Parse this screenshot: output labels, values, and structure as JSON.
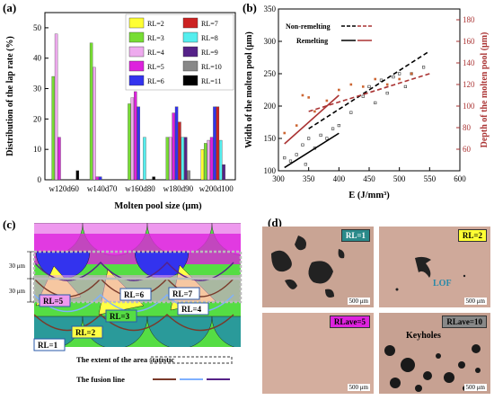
{
  "figure": {
    "panel_a_label": "(a)",
    "panel_b_label": "(b)",
    "panel_c_label": "(c)",
    "panel_d_label": "(d)"
  },
  "chart_data": [
    {
      "type": "bar",
      "ylabel": "Distribution of the lap rate (%)",
      "xlabel": "Molten pool size (μm)",
      "ylim": [
        0,
        55
      ],
      "yticks": [
        0,
        10,
        20,
        30,
        40,
        50
      ],
      "categories": [
        "w120d60",
        "w140d70",
        "w160d80",
        "w180d90",
        "w200d100"
      ],
      "legend_position": "top-right",
      "series": [
        {
          "name": "RL=2",
          "color": "#ffff33",
          "values": [
            0,
            0,
            0,
            0,
            10
          ]
        },
        {
          "name": "RL=3",
          "color": "#77dd33",
          "values": [
            34,
            45,
            25,
            14,
            12
          ]
        },
        {
          "name": "RL=4",
          "color": "#eeaaee",
          "values": [
            48,
            37,
            27,
            14,
            13
          ]
        },
        {
          "name": "RL=5",
          "color": "#dd22dd",
          "values": [
            14,
            1,
            29,
            22,
            14
          ]
        },
        {
          "name": "RL=6",
          "color": "#3333ee",
          "values": [
            0,
            1,
            24,
            24,
            24
          ]
        },
        {
          "name": "RL=7",
          "color": "#cc2222",
          "values": [
            0,
            0,
            0,
            19,
            24
          ]
        },
        {
          "name": "RL=8",
          "color": "#55eeee",
          "values": [
            0,
            0,
            14,
            14,
            13
          ]
        },
        {
          "name": "RL=9",
          "color": "#552288",
          "values": [
            0,
            0,
            0,
            14,
            5
          ]
        },
        {
          "name": "RL=10",
          "color": "#888888",
          "values": [
            0,
            0,
            0,
            3,
            0
          ]
        },
        {
          "name": "RL=11",
          "color": "#000000",
          "values": [
            3,
            0,
            1,
            0,
            0
          ]
        }
      ]
    },
    {
      "type": "scatter",
      "xlabel": "E (J/mm³)",
      "ylabel": "Width of the molten pool (μm)",
      "y2label": "Depth of the molten pool (μm)",
      "xlim": [
        300,
        600
      ],
      "ylim": [
        100,
        350
      ],
      "y2lim": [
        40,
        190
      ],
      "xticks": [
        300,
        350,
        400,
        450,
        500,
        550,
        600
      ],
      "yticks": [
        100,
        150,
        200,
        250,
        300,
        350
      ],
      "y2ticks": [
        60,
        80,
        100,
        120,
        140,
        160,
        180
      ],
      "legend": [
        "Non-remelting",
        "Remelting"
      ],
      "width_points": [
        [
          310,
          120
        ],
        [
          320,
          115
        ],
        [
          330,
          125
        ],
        [
          340,
          140
        ],
        [
          345,
          110
        ],
        [
          350,
          150
        ],
        [
          360,
          135
        ],
        [
          370,
          155
        ],
        [
          380,
          150
        ],
        [
          390,
          165
        ],
        [
          400,
          170
        ],
        [
          420,
          190
        ],
        [
          440,
          215
        ],
        [
          450,
          230
        ],
        [
          460,
          205
        ],
        [
          470,
          240
        ],
        [
          480,
          220
        ],
        [
          490,
          245
        ],
        [
          500,
          250
        ],
        [
          510,
          230
        ],
        [
          520,
          250
        ],
        [
          540,
          260
        ]
      ],
      "depth_points": [
        [
          310,
          75
        ],
        [
          330,
          82
        ],
        [
          340,
          110
        ],
        [
          350,
          108
        ],
        [
          360,
          95
        ],
        [
          380,
          105
        ],
        [
          400,
          115
        ],
        [
          420,
          120
        ],
        [
          440,
          118
        ],
        [
          460,
          125
        ],
        [
          480,
          120
        ],
        [
          500,
          125
        ],
        [
          520,
          130
        ]
      ],
      "fit_lines": [
        {
          "series": "Non-remelting width",
          "color": "#000000",
          "dash": true,
          "x": [
            350,
            550
          ],
          "y": [
            165,
            285
          ]
        },
        {
          "series": "Non-remelting depth",
          "color": "#aa3333",
          "dash": true,
          "x": [
            350,
            550
          ],
          "y": [
            95,
            130
          ]
        },
        {
          "series": "Remelting width",
          "color": "#000000",
          "dash": false,
          "x": [
            310,
            400
          ],
          "y": [
            105,
            158
          ]
        },
        {
          "series": "Remelting depth",
          "color": "#aa3333",
          "dash": false,
          "x": [
            310,
            400
          ],
          "y": [
            65,
            110
          ]
        }
      ]
    }
  ],
  "panel_c": {
    "dim_top": "30 μm",
    "dim_bottom": "30 μm",
    "labels": [
      "RL=1",
      "RL=2",
      "RL=3",
      "RL=4",
      "RL=5",
      "RL=6",
      "RL=7"
    ],
    "legend_extent": "The extent of the area statistic",
    "legend_fusion": "The fusion line"
  },
  "panel_d": {
    "tiles": [
      {
        "tag": "RL=1",
        "tag_color": "#2a8a8a",
        "scale": "500 μm"
      },
      {
        "tag": "RL=2",
        "tag_color": "#ffff33",
        "note": "LOF",
        "scale": "500 μm"
      },
      {
        "tag": "RLave=5",
        "tag_color": "#dd22dd",
        "scale": "500 μm"
      },
      {
        "tag": "RLave=10",
        "tag_color": "#888888",
        "note": "Keyholes",
        "scale": "500 μm"
      }
    ]
  }
}
